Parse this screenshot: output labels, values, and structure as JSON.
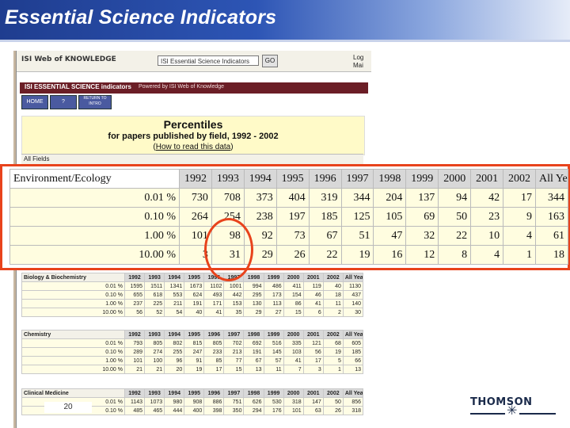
{
  "slide": {
    "title": "Essential Science Indicators",
    "page_number": "20"
  },
  "browser": {
    "logo": "ISI Web of KNOWLEDGE",
    "database_select": "ISI Essential Science Indicators",
    "go_label": "GO",
    "right_links": [
      "Log",
      "Mai"
    ]
  },
  "esi_header": {
    "title": "ISI ESSENTIAL SCIENCE indicators",
    "powered": "Powered by ISI Web of Knowledge"
  },
  "nav_buttons": [
    "HOME",
    "?",
    "RETURN TO INTRO"
  ],
  "percentiles": {
    "title": "Percentiles",
    "subtitle": "for papers published by field, 1992 - 2002",
    "link": "How to read this data"
  },
  "years": [
    "1992",
    "1993",
    "1994",
    "1995",
    "1996",
    "1997",
    "1998",
    "1999",
    "2000",
    "2001",
    "2002",
    "All Years"
  ],
  "all_fields_label": "All Fields",
  "highlight_table": {
    "field": "Environment/Ecology",
    "rows": [
      {
        "label": "0.01 %",
        "values": [
          "730",
          "708",
          "373",
          "404",
          "319",
          "344",
          "204",
          "137",
          "94",
          "42",
          "17",
          "344"
        ]
      },
      {
        "label": "0.10 %",
        "values": [
          "264",
          "254",
          "238",
          "197",
          "185",
          "125",
          "105",
          "69",
          "50",
          "23",
          "9",
          "163"
        ]
      },
      {
        "label": "1.00 %",
        "values": [
          "101",
          "98",
          "92",
          "73",
          "67",
          "51",
          "47",
          "32",
          "22",
          "10",
          "4",
          "61"
        ]
      },
      {
        "label": "10.00 %",
        "values": [
          "3",
          "31",
          "29",
          "26",
          "22",
          "19",
          "16",
          "12",
          "8",
          "4",
          "1",
          "18"
        ]
      }
    ]
  },
  "small_tables": [
    {
      "field": "Biology & Biochemistry",
      "rows": [
        {
          "label": "0.01 %",
          "values": [
            "1595",
            "1511",
            "1341",
            "1673",
            "1102",
            "1001",
            "994",
            "486",
            "411",
            "119",
            "40",
            "1130"
          ]
        },
        {
          "label": "0.10 %",
          "values": [
            "655",
            "618",
            "553",
            "624",
            "493",
            "442",
            "295",
            "173",
            "154",
            "46",
            "18",
            "437"
          ]
        },
        {
          "label": "1.00 %",
          "values": [
            "237",
            "225",
            "211",
            "191",
            "171",
            "153",
            "130",
            "113",
            "86",
            "41",
            "11",
            "140"
          ]
        },
        {
          "label": "10.00 %",
          "values": [
            "56",
            "52",
            "54",
            "40",
            "41",
            "35",
            "29",
            "27",
            "15",
            "6",
            "2",
            "30"
          ]
        }
      ]
    },
    {
      "field": "Chemistry",
      "rows": [
        {
          "label": "0.01 %",
          "values": [
            "793",
            "805",
            "802",
            "815",
            "805",
            "702",
            "692",
            "516",
            "335",
            "121",
            "68",
            "605"
          ]
        },
        {
          "label": "0.10 %",
          "values": [
            "289",
            "274",
            "255",
            "247",
            "233",
            "213",
            "191",
            "145",
            "103",
            "56",
            "19",
            "185"
          ]
        },
        {
          "label": "1.00 %",
          "values": [
            "101",
            "100",
            "96",
            "91",
            "85",
            "77",
            "67",
            "57",
            "41",
            "17",
            "5",
            "66"
          ]
        },
        {
          "label": "10.00 %",
          "values": [
            "21",
            "21",
            "20",
            "19",
            "17",
            "15",
            "13",
            "11",
            "7",
            "3",
            "1",
            "13"
          ]
        }
      ]
    },
    {
      "field": "Clinical Medicine",
      "rows": [
        {
          "label": "0.01 %",
          "values": [
            "1143",
            "1073",
            "980",
            "908",
            "886",
            "751",
            "626",
            "530",
            "318",
            "147",
            "50",
            "856"
          ]
        },
        {
          "label": "0.10 %",
          "values": [
            "485",
            "465",
            "444",
            "400",
            "398",
            "350",
            "294",
            "176",
            "101",
            "63",
            "26",
            "318"
          ]
        }
      ]
    }
  ],
  "logo_text": "THOMSON"
}
